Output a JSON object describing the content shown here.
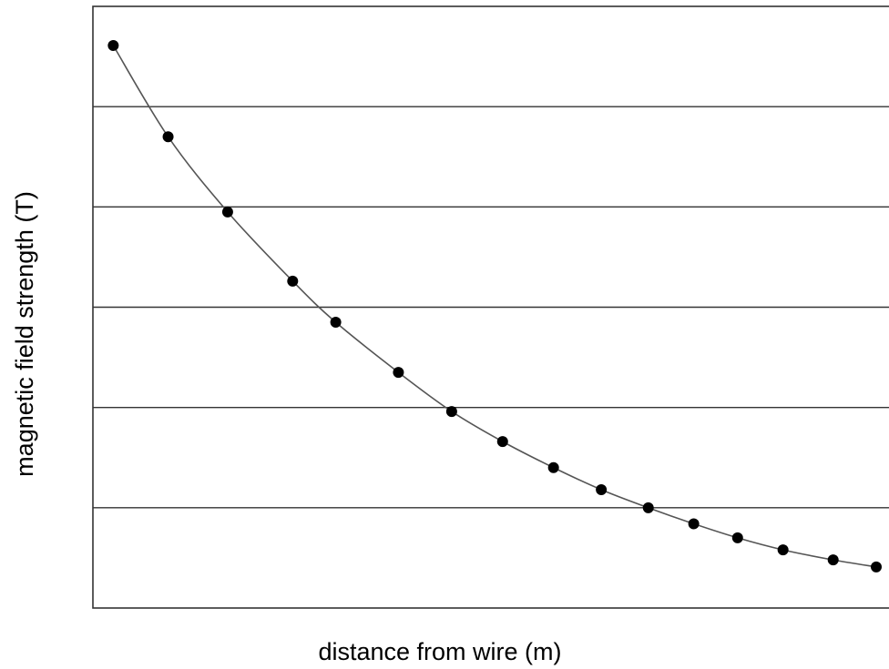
{
  "chart_data": {
    "type": "scatter",
    "title": "",
    "xlabel": "distance from wire (m)",
    "ylabel": "magnetic field strength (T)",
    "xlim": [
      0,
      100
    ],
    "ylim": [
      0,
      6
    ],
    "grid": true,
    "y_gridlines": [
      1,
      2,
      3,
      4,
      5
    ],
    "tick_labels_shown": false,
    "series": [
      {
        "fit_curve": true,
        "points": [
          {
            "x": 2.6,
            "y": 5.61
          },
          {
            "x": 9.6,
            "y": 4.7
          },
          {
            "x": 17.2,
            "y": 3.95
          },
          {
            "x": 25.5,
            "y": 3.26
          },
          {
            "x": 31.0,
            "y": 2.85
          },
          {
            "x": 39.0,
            "y": 2.35
          },
          {
            "x": 45.8,
            "y": 1.96
          },
          {
            "x": 52.3,
            "y": 1.66
          },
          {
            "x": 58.8,
            "y": 1.4
          },
          {
            "x": 64.9,
            "y": 1.18
          },
          {
            "x": 70.9,
            "y": 1.0
          },
          {
            "x": 76.7,
            "y": 0.84
          },
          {
            "x": 82.3,
            "y": 0.7
          },
          {
            "x": 88.1,
            "y": 0.58
          },
          {
            "x": 94.5,
            "y": 0.48
          },
          {
            "x": 100.0,
            "y": 0.41
          }
        ]
      }
    ],
    "colors": {
      "line": "#555555",
      "points": "#000000",
      "grid": "#333333",
      "frame": "#333333"
    }
  }
}
